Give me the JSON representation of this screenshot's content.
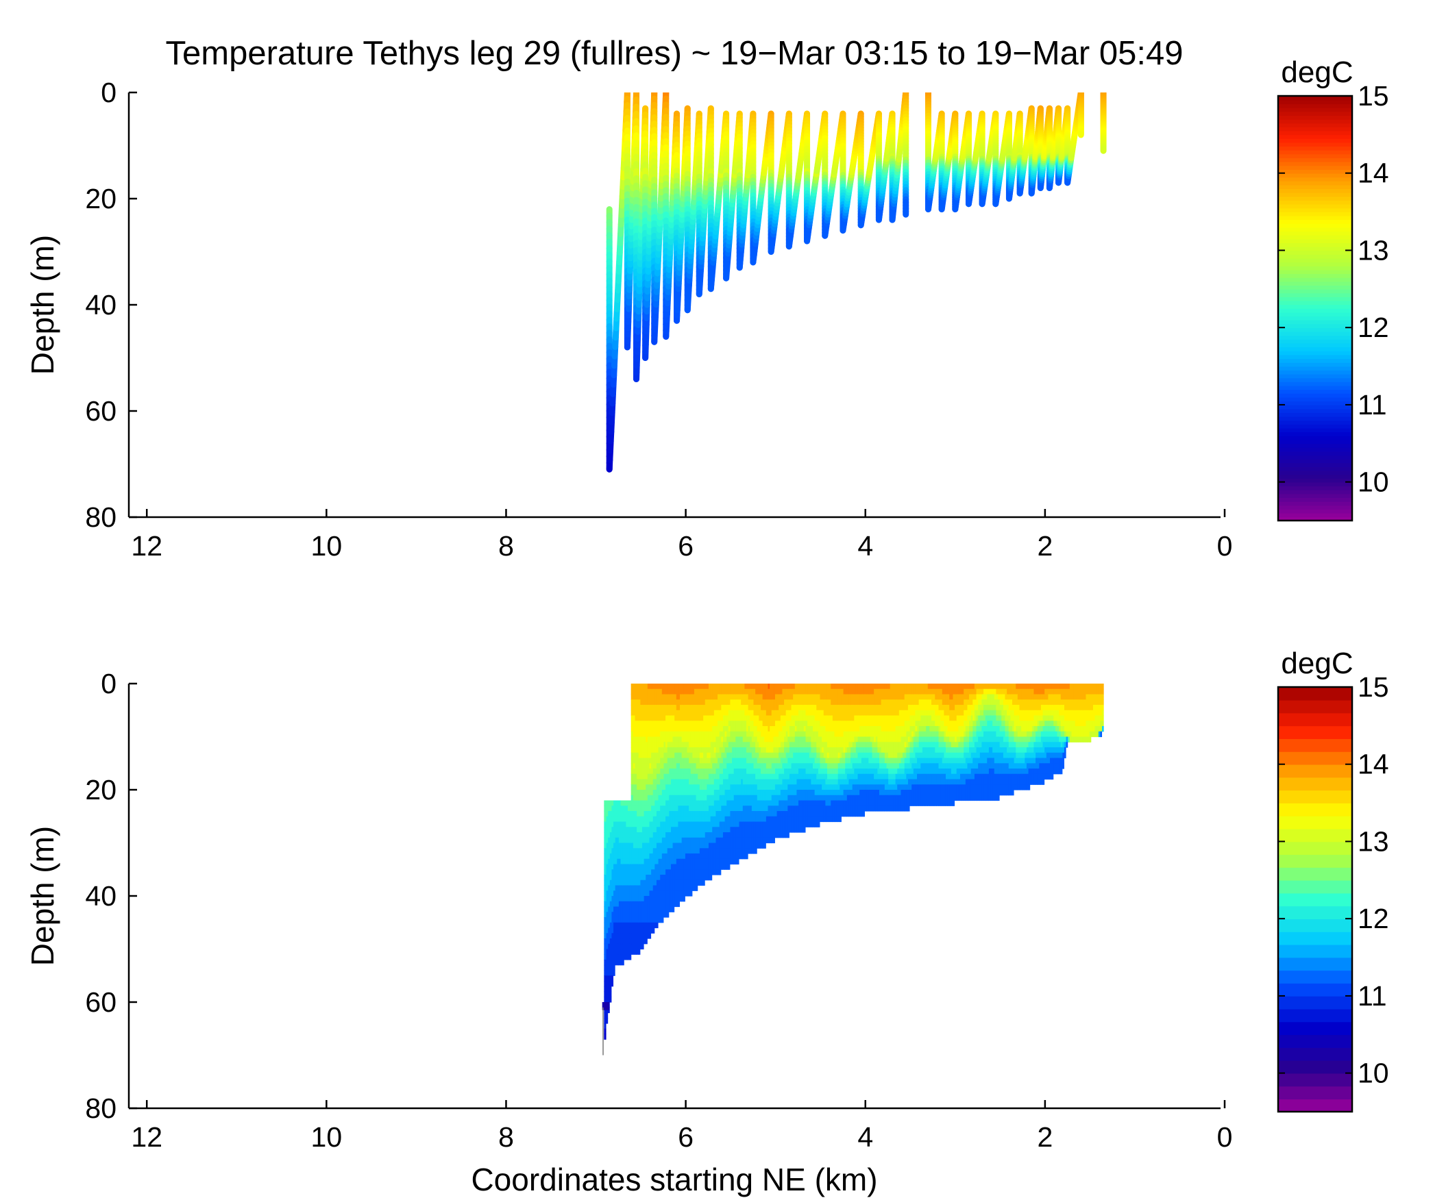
{
  "figure": {
    "title": "Temperature Tethys leg 29 (fullres) ~ 19−Mar 03:15 to 19−Mar 05:49",
    "shared_xlabel": "Coordinates starting NE (km)"
  },
  "colorbar": {
    "title": "degC",
    "min": 9.5,
    "max": 15,
    "ticks": [
      "10",
      "11",
      "12",
      "13",
      "14",
      "15"
    ],
    "colormap_stops": [
      "#9b009b",
      "#2a0090",
      "#0000cc",
      "#0050ff",
      "#00c8ff",
      "#30ffd0",
      "#b0ff40",
      "#ffff00",
      "#ffa000",
      "#ff2000",
      "#a00000"
    ]
  },
  "chart_data": [
    {
      "type": "scatter",
      "subtype": "glider-track-section",
      "title": "Temperature Tethys leg 29 (fullres) ~ 19−Mar 03:15 to 19−Mar 05:49",
      "xlabel": "",
      "ylabel": "Depth (m)",
      "xlim": [
        12.2,
        0
      ],
      "ylim": [
        0,
        80
      ],
      "y_inverted": true,
      "xticks": [
        "12",
        "10",
        "8",
        "6",
        "4",
        "2",
        "0"
      ],
      "yticks": [
        "0",
        "20",
        "40",
        "60",
        "80"
      ],
      "colorbar_label": "degC",
      "clim": [
        9.5,
        15
      ],
      "profiles": [
        {
          "x": 6.85,
          "top": 22,
          "bottom": 71
        },
        {
          "x": 6.65,
          "top": 0,
          "bottom": 48
        },
        {
          "x": 6.55,
          "top": 0,
          "bottom": 54
        },
        {
          "x": 6.45,
          "top": 3,
          "bottom": 50
        },
        {
          "x": 6.35,
          "top": 0,
          "bottom": 47
        },
        {
          "x": 6.22,
          "top": 0,
          "bottom": 46
        },
        {
          "x": 6.1,
          "top": 4,
          "bottom": 43
        },
        {
          "x": 5.98,
          "top": 3,
          "bottom": 41
        },
        {
          "x": 5.85,
          "top": 4,
          "bottom": 38
        },
        {
          "x": 5.72,
          "top": 3,
          "bottom": 37
        },
        {
          "x": 5.55,
          "top": 4,
          "bottom": 35
        },
        {
          "x": 5.4,
          "top": 4,
          "bottom": 33
        },
        {
          "x": 5.25,
          "top": 4,
          "bottom": 32
        },
        {
          "x": 5.05,
          "top": 4,
          "bottom": 30
        },
        {
          "x": 4.85,
          "top": 4,
          "bottom": 29
        },
        {
          "x": 4.65,
          "top": 4,
          "bottom": 28
        },
        {
          "x": 4.45,
          "top": 4,
          "bottom": 27
        },
        {
          "x": 4.25,
          "top": 4,
          "bottom": 26
        },
        {
          "x": 4.05,
          "top": 4,
          "bottom": 25
        },
        {
          "x": 3.85,
          "top": 4,
          "bottom": 24
        },
        {
          "x": 3.7,
          "top": 4,
          "bottom": 24
        },
        {
          "x": 3.55,
          "top": 0,
          "bottom": 23
        },
        {
          "x": 3.3,
          "top": 0,
          "bottom": 22
        },
        {
          "x": 3.15,
          "top": 4,
          "bottom": 22
        },
        {
          "x": 3.0,
          "top": 4,
          "bottom": 22
        },
        {
          "x": 2.85,
          "top": 4,
          "bottom": 21
        },
        {
          "x": 2.7,
          "top": 4,
          "bottom": 21
        },
        {
          "x": 2.55,
          "top": 4,
          "bottom": 21
        },
        {
          "x": 2.4,
          "top": 4,
          "bottom": 20
        },
        {
          "x": 2.28,
          "top": 4,
          "bottom": 19
        },
        {
          "x": 2.15,
          "top": 3,
          "bottom": 19
        },
        {
          "x": 2.05,
          "top": 3,
          "bottom": 18
        },
        {
          "x": 1.95,
          "top": 3,
          "bottom": 18
        },
        {
          "x": 1.85,
          "top": 3,
          "bottom": 17
        },
        {
          "x": 1.75,
          "top": 3,
          "bottom": 17
        },
        {
          "x": 1.6,
          "top": 0,
          "bottom": 8
        },
        {
          "x": 1.35,
          "top": 0,
          "bottom": 11
        }
      ]
    },
    {
      "type": "heatmap",
      "subtype": "interpolated-filled-contour-section",
      "title": "",
      "xlabel": "Coordinates starting NE (km)",
      "ylabel": "Depth (m)",
      "xlim": [
        12.2,
        0
      ],
      "ylim": [
        0,
        80
      ],
      "y_inverted": true,
      "xticks": [
        "12",
        "10",
        "8",
        "6",
        "4",
        "2",
        "0"
      ],
      "yticks": [
        "0",
        "20",
        "40",
        "60",
        "80"
      ],
      "colorbar_label": "degC",
      "clim": [
        9.5,
        15
      ],
      "bottom_boundary": [
        {
          "x": 6.92,
          "depth": 70
        },
        {
          "x": 6.78,
          "depth": 53
        },
        {
          "x": 6.5,
          "depth": 50
        },
        {
          "x": 6.3,
          "depth": 45
        },
        {
          "x": 6.0,
          "depth": 40
        },
        {
          "x": 5.7,
          "depth": 36
        },
        {
          "x": 5.3,
          "depth": 32
        },
        {
          "x": 5.0,
          "depth": 29
        },
        {
          "x": 4.5,
          "depth": 26
        },
        {
          "x": 4.0,
          "depth": 24
        },
        {
          "x": 3.5,
          "depth": 23
        },
        {
          "x": 3.0,
          "depth": 22
        },
        {
          "x": 2.5,
          "depth": 21
        },
        {
          "x": 2.0,
          "depth": 18
        },
        {
          "x": 1.8,
          "depth": 16
        },
        {
          "x": 1.75,
          "depth": 11
        },
        {
          "x": 1.6,
          "depth": 11
        },
        {
          "x": 1.35,
          "depth": 9
        }
      ],
      "left_boundary": [
        {
          "depth": 0,
          "x": 6.6
        },
        {
          "depth": 21,
          "x": 6.6
        },
        {
          "depth": 22,
          "x": 6.83
        }
      ],
      "right_edge_x": 1.35,
      "thermocline_depth": [
        {
          "x": 6.6,
          "depth": 14
        },
        {
          "x": 6.0,
          "depth": 12
        },
        {
          "x": 5.5,
          "depth": 10
        },
        {
          "x": 5.0,
          "depth": 10
        },
        {
          "x": 4.5,
          "depth": 11
        },
        {
          "x": 4.0,
          "depth": 12
        },
        {
          "x": 3.5,
          "depth": 10
        },
        {
          "x": 3.0,
          "depth": 8
        },
        {
          "x": 2.6,
          "depth": 5
        },
        {
          "x": 2.0,
          "depth": 8
        },
        {
          "x": 1.75,
          "depth": 10
        },
        {
          "x": 1.35,
          "depth": 9
        }
      ]
    }
  ]
}
